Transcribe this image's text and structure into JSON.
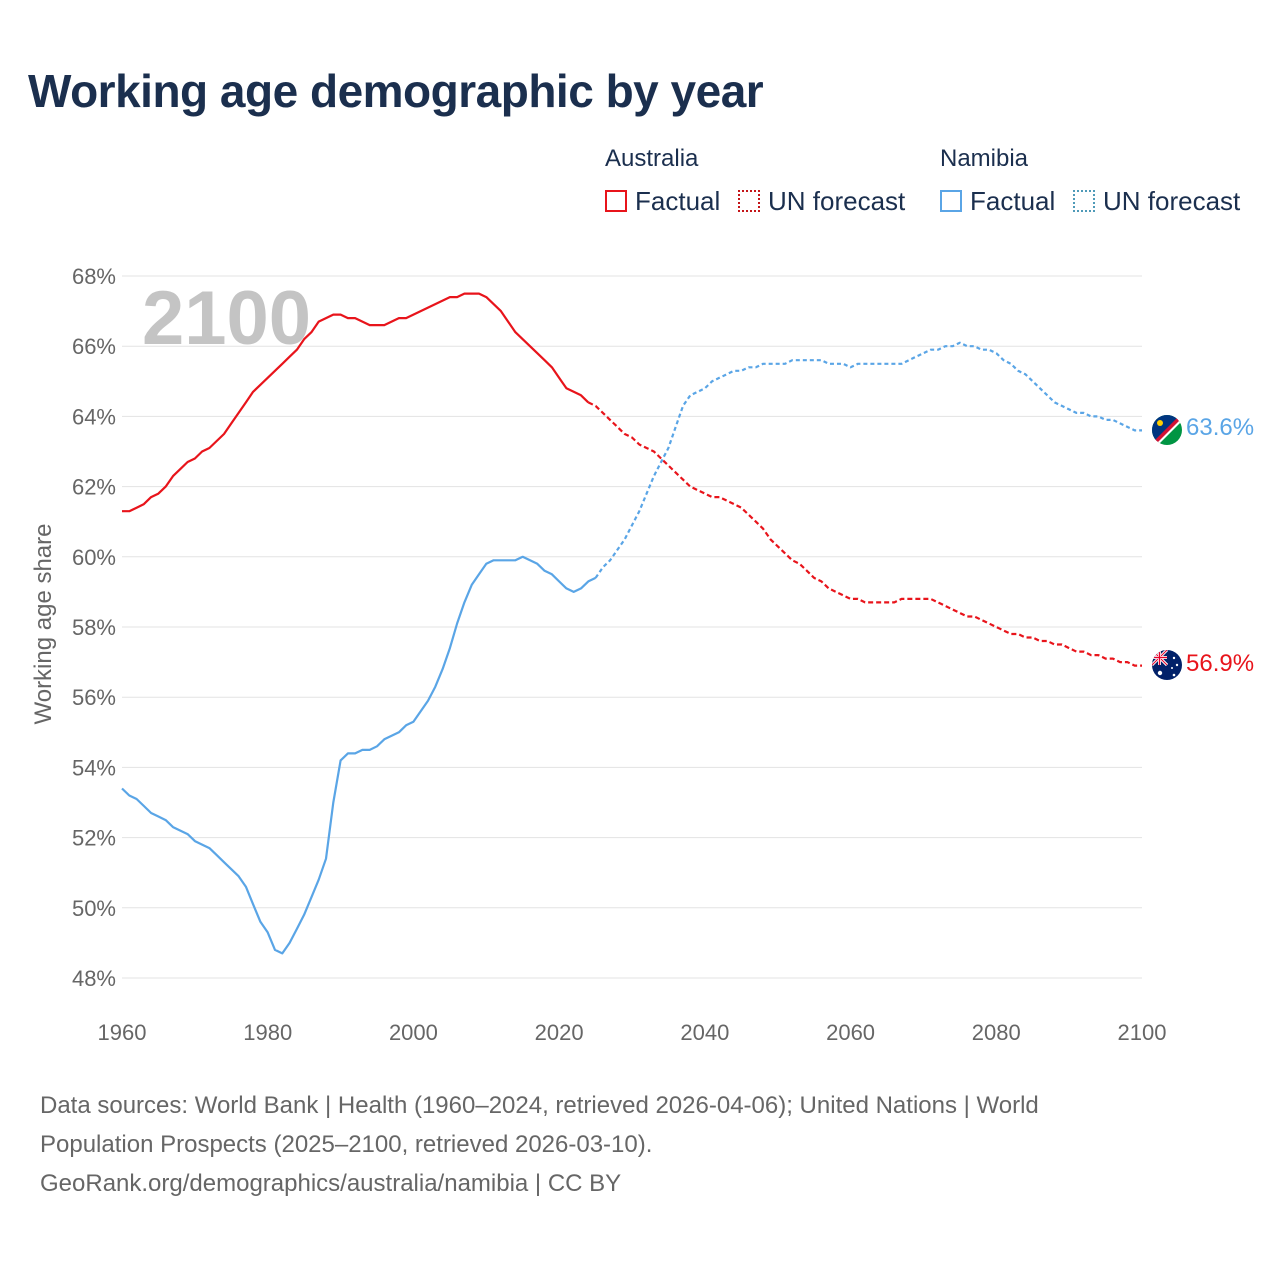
{
  "title": "Working age demographic by year",
  "legend": {
    "groups": [
      {
        "name": "Australia",
        "factual": "Factual",
        "forecast": "UN forecast",
        "color": "#e8141b"
      },
      {
        "name": "Namibia",
        "factual": "Factual",
        "forecast": "UN forecast",
        "color": "#5aa5e6"
      }
    ]
  },
  "year_watermark": "2100",
  "end_labels": {
    "namibia": "63.6%",
    "australia": "56.9%"
  },
  "flags": {
    "namibia": "namibia-flag-icon",
    "australia": "australia-flag-icon"
  },
  "sources": {
    "line1": "Data sources: World Bank | Health (1960–2024, retrieved 2026-04-06); United Nations | World",
    "line2": "Population Prospects (2025–2100, retrieved 2026-03-10).",
    "line3": "GeoRank.org/demographics/australia/namibia | CC BY"
  },
  "chart_data": {
    "type": "line",
    "title": "Working age demographic by year",
    "xlabel": "",
    "ylabel": "Working age share",
    "xlim": [
      1960,
      2100
    ],
    "ylim": [
      47.2,
      68
    ],
    "x_ticks": [
      1960,
      1980,
      2000,
      2020,
      2040,
      2060,
      2080,
      2100
    ],
    "x_tick_labels": [
      "1960",
      "1980",
      "2000",
      "2020",
      "2040",
      "2060",
      "2080",
      "2100"
    ],
    "y_ticks": [
      48,
      50,
      52,
      54,
      56,
      58,
      60,
      62,
      64,
      66,
      68
    ],
    "y_tick_labels": [
      "48%",
      "50%",
      "52%",
      "54%",
      "56%",
      "58%",
      "60%",
      "62%",
      "64%",
      "66%",
      "68%"
    ],
    "grid": true,
    "series": [
      {
        "name": "Australia",
        "part": "Factual",
        "color": "#e8141b",
        "style": "solid",
        "points": [
          [
            1960,
            61.3
          ],
          [
            1961,
            61.3
          ],
          [
            1962,
            61.4
          ],
          [
            1963,
            61.5
          ],
          [
            1964,
            61.7
          ],
          [
            1965,
            61.8
          ],
          [
            1966,
            62.0
          ],
          [
            1967,
            62.3
          ],
          [
            1968,
            62.5
          ],
          [
            1969,
            62.7
          ],
          [
            1970,
            62.8
          ],
          [
            1971,
            63.0
          ],
          [
            1972,
            63.1
          ],
          [
            1973,
            63.3
          ],
          [
            1974,
            63.5
          ],
          [
            1975,
            63.8
          ],
          [
            1976,
            64.1
          ],
          [
            1977,
            64.4
          ],
          [
            1978,
            64.7
          ],
          [
            1979,
            64.9
          ],
          [
            1980,
            65.1
          ],
          [
            1981,
            65.3
          ],
          [
            1982,
            65.5
          ],
          [
            1983,
            65.7
          ],
          [
            1984,
            65.9
          ],
          [
            1985,
            66.2
          ],
          [
            1986,
            66.4
          ],
          [
            1987,
            66.7
          ],
          [
            1988,
            66.8
          ],
          [
            1989,
            66.9
          ],
          [
            1990,
            66.9
          ],
          [
            1991,
            66.8
          ],
          [
            1992,
            66.8
          ],
          [
            1993,
            66.7
          ],
          [
            1994,
            66.6
          ],
          [
            1995,
            66.6
          ],
          [
            1996,
            66.6
          ],
          [
            1997,
            66.7
          ],
          [
            1998,
            66.8
          ],
          [
            1999,
            66.8
          ],
          [
            2000,
            66.9
          ],
          [
            2001,
            67.0
          ],
          [
            2002,
            67.1
          ],
          [
            2003,
            67.2
          ],
          [
            2004,
            67.3
          ],
          [
            2005,
            67.4
          ],
          [
            2006,
            67.4
          ],
          [
            2007,
            67.5
          ],
          [
            2008,
            67.5
          ],
          [
            2009,
            67.5
          ],
          [
            2010,
            67.4
          ],
          [
            2011,
            67.2
          ],
          [
            2012,
            67.0
          ],
          [
            2013,
            66.7
          ],
          [
            2014,
            66.4
          ],
          [
            2015,
            66.2
          ],
          [
            2016,
            66.0
          ],
          [
            2017,
            65.8
          ],
          [
            2018,
            65.6
          ],
          [
            2019,
            65.4
          ],
          [
            2020,
            65.1
          ],
          [
            2021,
            64.8
          ],
          [
            2022,
            64.7
          ],
          [
            2023,
            64.6
          ],
          [
            2024,
            64.4
          ]
        ]
      },
      {
        "name": "Australia",
        "part": "UN forecast",
        "color": "#e8141b",
        "style": "dashed",
        "points": [
          [
            2024,
            64.4
          ],
          [
            2025,
            64.3
          ],
          [
            2026,
            64.1
          ],
          [
            2027,
            63.9
          ],
          [
            2028,
            63.7
          ],
          [
            2029,
            63.5
          ],
          [
            2030,
            63.4
          ],
          [
            2031,
            63.2
          ],
          [
            2032,
            63.1
          ],
          [
            2033,
            63.0
          ],
          [
            2034,
            62.8
          ],
          [
            2035,
            62.6
          ],
          [
            2036,
            62.4
          ],
          [
            2037,
            62.2
          ],
          [
            2038,
            62.0
          ],
          [
            2039,
            61.9
          ],
          [
            2040,
            61.8
          ],
          [
            2041,
            61.7
          ],
          [
            2042,
            61.7
          ],
          [
            2043,
            61.6
          ],
          [
            2044,
            61.5
          ],
          [
            2045,
            61.4
          ],
          [
            2046,
            61.2
          ],
          [
            2047,
            61.0
          ],
          [
            2048,
            60.8
          ],
          [
            2049,
            60.5
          ],
          [
            2050,
            60.3
          ],
          [
            2051,
            60.1
          ],
          [
            2052,
            59.9
          ],
          [
            2053,
            59.8
          ],
          [
            2054,
            59.6
          ],
          [
            2055,
            59.4
          ],
          [
            2056,
            59.3
          ],
          [
            2057,
            59.1
          ],
          [
            2058,
            59.0
          ],
          [
            2059,
            58.9
          ],
          [
            2060,
            58.8
          ],
          [
            2061,
            58.8
          ],
          [
            2062,
            58.7
          ],
          [
            2063,
            58.7
          ],
          [
            2064,
            58.7
          ],
          [
            2065,
            58.7
          ],
          [
            2066,
            58.7
          ],
          [
            2067,
            58.8
          ],
          [
            2068,
            58.8
          ],
          [
            2069,
            58.8
          ],
          [
            2070,
            58.8
          ],
          [
            2071,
            58.8
          ],
          [
            2072,
            58.7
          ],
          [
            2073,
            58.6
          ],
          [
            2074,
            58.5
          ],
          [
            2075,
            58.4
          ],
          [
            2076,
            58.3
          ],
          [
            2077,
            58.3
          ],
          [
            2078,
            58.2
          ],
          [
            2079,
            58.1
          ],
          [
            2080,
            58.0
          ],
          [
            2081,
            57.9
          ],
          [
            2082,
            57.8
          ],
          [
            2083,
            57.8
          ],
          [
            2084,
            57.7
          ],
          [
            2085,
            57.7
          ],
          [
            2086,
            57.6
          ],
          [
            2087,
            57.6
          ],
          [
            2088,
            57.5
          ],
          [
            2089,
            57.5
          ],
          [
            2090,
            57.4
          ],
          [
            2091,
            57.3
          ],
          [
            2092,
            57.3
          ],
          [
            2093,
            57.2
          ],
          [
            2094,
            57.2
          ],
          [
            2095,
            57.1
          ],
          [
            2096,
            57.1
          ],
          [
            2097,
            57.0
          ],
          [
            2098,
            57.0
          ],
          [
            2099,
            56.9
          ],
          [
            2100,
            56.9
          ]
        ]
      },
      {
        "name": "Namibia",
        "part": "Factual",
        "color": "#5aa5e6",
        "style": "solid",
        "points": [
          [
            1960,
            53.4
          ],
          [
            1961,
            53.2
          ],
          [
            1962,
            53.1
          ],
          [
            1963,
            52.9
          ],
          [
            1964,
            52.7
          ],
          [
            1965,
            52.6
          ],
          [
            1966,
            52.5
          ],
          [
            1967,
            52.3
          ],
          [
            1968,
            52.2
          ],
          [
            1969,
            52.1
          ],
          [
            1970,
            51.9
          ],
          [
            1971,
            51.8
          ],
          [
            1972,
            51.7
          ],
          [
            1973,
            51.5
          ],
          [
            1974,
            51.3
          ],
          [
            1975,
            51.1
          ],
          [
            1976,
            50.9
          ],
          [
            1977,
            50.6
          ],
          [
            1978,
            50.1
          ],
          [
            1979,
            49.6
          ],
          [
            1980,
            49.3
          ],
          [
            1981,
            48.8
          ],
          [
            1982,
            48.7
          ],
          [
            1983,
            49.0
          ],
          [
            1984,
            49.4
          ],
          [
            1985,
            49.8
          ],
          [
            1986,
            50.3
          ],
          [
            1987,
            50.8
          ],
          [
            1988,
            51.4
          ],
          [
            1989,
            53.0
          ],
          [
            1990,
            54.2
          ],
          [
            1991,
            54.4
          ],
          [
            1992,
            54.4
          ],
          [
            1993,
            54.5
          ],
          [
            1994,
            54.5
          ],
          [
            1995,
            54.6
          ],
          [
            1996,
            54.8
          ],
          [
            1997,
            54.9
          ],
          [
            1998,
            55.0
          ],
          [
            1999,
            55.2
          ],
          [
            2000,
            55.3
          ],
          [
            2001,
            55.6
          ],
          [
            2002,
            55.9
          ],
          [
            2003,
            56.3
          ],
          [
            2004,
            56.8
          ],
          [
            2005,
            57.4
          ],
          [
            2006,
            58.1
          ],
          [
            2007,
            58.7
          ],
          [
            2008,
            59.2
          ],
          [
            2009,
            59.5
          ],
          [
            2010,
            59.8
          ],
          [
            2011,
            59.9
          ],
          [
            2012,
            59.9
          ],
          [
            2013,
            59.9
          ],
          [
            2014,
            59.9
          ],
          [
            2015,
            60.0
          ],
          [
            2016,
            59.9
          ],
          [
            2017,
            59.8
          ],
          [
            2018,
            59.6
          ],
          [
            2019,
            59.5
          ],
          [
            2020,
            59.3
          ],
          [
            2021,
            59.1
          ],
          [
            2022,
            59.0
          ],
          [
            2023,
            59.1
          ],
          [
            2024,
            59.3
          ],
          [
            2025,
            59.4
          ]
        ]
      },
      {
        "name": "Namibia",
        "part": "UN forecast",
        "color": "#5aa5e6",
        "style": "dotted",
        "points": [
          [
            2025,
            59.4
          ],
          [
            2026,
            59.7
          ],
          [
            2027,
            59.9
          ],
          [
            2028,
            60.2
          ],
          [
            2029,
            60.5
          ],
          [
            2030,
            60.9
          ],
          [
            2031,
            61.3
          ],
          [
            2032,
            61.8
          ],
          [
            2033,
            62.3
          ],
          [
            2034,
            62.7
          ],
          [
            2035,
            63.1
          ],
          [
            2036,
            63.7
          ],
          [
            2037,
            64.3
          ],
          [
            2038,
            64.6
          ],
          [
            2039,
            64.7
          ],
          [
            2040,
            64.8
          ],
          [
            2041,
            65.0
          ],
          [
            2042,
            65.1
          ],
          [
            2043,
            65.2
          ],
          [
            2044,
            65.3
          ],
          [
            2045,
            65.3
          ],
          [
            2046,
            65.4
          ],
          [
            2047,
            65.4
          ],
          [
            2048,
            65.5
          ],
          [
            2049,
            65.5
          ],
          [
            2050,
            65.5
          ],
          [
            2051,
            65.5
          ],
          [
            2052,
            65.6
          ],
          [
            2053,
            65.6
          ],
          [
            2054,
            65.6
          ],
          [
            2055,
            65.6
          ],
          [
            2056,
            65.6
          ],
          [
            2057,
            65.5
          ],
          [
            2058,
            65.5
          ],
          [
            2059,
            65.5
          ],
          [
            2060,
            65.4
          ],
          [
            2061,
            65.5
          ],
          [
            2062,
            65.5
          ],
          [
            2063,
            65.5
          ],
          [
            2064,
            65.5
          ],
          [
            2065,
            65.5
          ],
          [
            2066,
            65.5
          ],
          [
            2067,
            65.5
          ],
          [
            2068,
            65.6
          ],
          [
            2069,
            65.7
          ],
          [
            2070,
            65.8
          ],
          [
            2071,
            65.9
          ],
          [
            2072,
            65.9
          ],
          [
            2073,
            66.0
          ],
          [
            2074,
            66.0
          ],
          [
            2075,
            66.1
          ],
          [
            2076,
            66.0
          ],
          [
            2077,
            66.0
          ],
          [
            2078,
            65.9
          ],
          [
            2079,
            65.9
          ],
          [
            2080,
            65.8
          ],
          [
            2081,
            65.6
          ],
          [
            2082,
            65.5
          ],
          [
            2083,
            65.3
          ],
          [
            2084,
            65.2
          ],
          [
            2085,
            65.0
          ],
          [
            2086,
            64.8
          ],
          [
            2087,
            64.6
          ],
          [
            2088,
            64.4
          ],
          [
            2089,
            64.3
          ],
          [
            2090,
            64.2
          ],
          [
            2091,
            64.1
          ],
          [
            2092,
            64.1
          ],
          [
            2093,
            64.0
          ],
          [
            2094,
            64.0
          ],
          [
            2095,
            63.9
          ],
          [
            2096,
            63.9
          ],
          [
            2097,
            63.8
          ],
          [
            2098,
            63.7
          ],
          [
            2099,
            63.6
          ],
          [
            2100,
            63.6
          ]
        ]
      }
    ]
  }
}
